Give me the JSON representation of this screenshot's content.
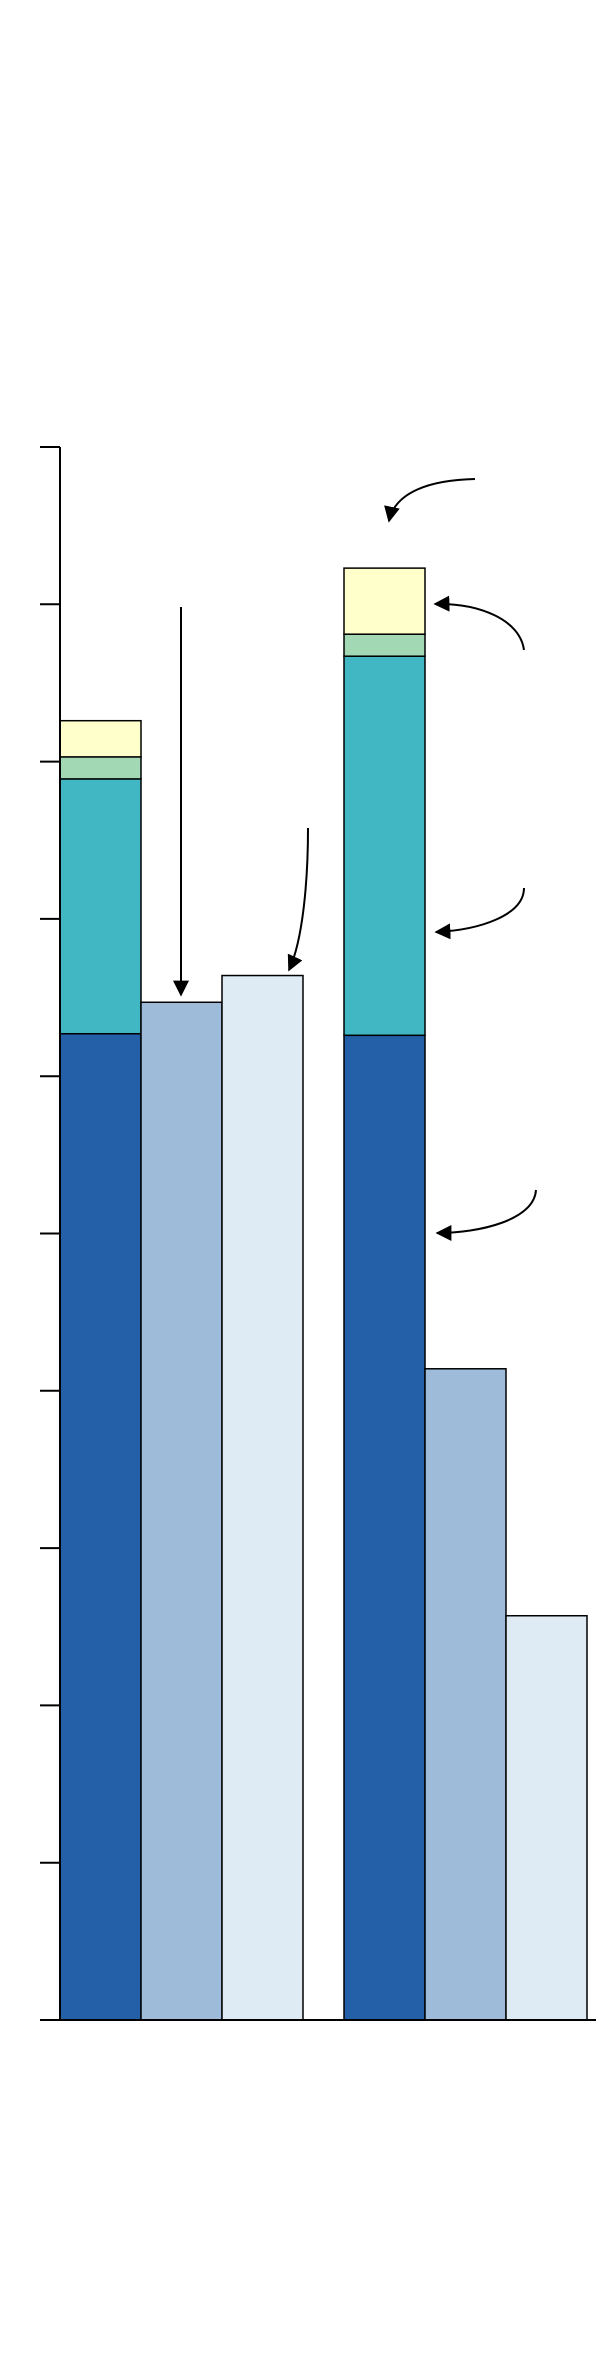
{
  "chart_data": {
    "type": "bar",
    "title": "",
    "xlabel": "",
    "ylabel": "",
    "ylim": [
      0,
      10
    ],
    "yticks": [
      0,
      1,
      2,
      3,
      4,
      5,
      6,
      7,
      8,
      9,
      10
    ],
    "grid": false,
    "legend": "none",
    "tick_labels_visible": false,
    "groups": [
      {
        "bars": [
          {
            "segments": [
              {
                "value": 6.27,
                "color": "#2360a8"
              },
              {
                "value": 1.62,
                "color": "#42b7c4"
              },
              {
                "value": 0.14,
                "color": "#a2d9b4"
              },
              {
                "value": 0.23,
                "color": "#ffffcc"
              }
            ]
          },
          {
            "segments": [
              {
                "value": 6.47,
                "color": "#9ebbda"
              }
            ]
          },
          {
            "segments": [
              {
                "value": 6.64,
                "color": "#dfebf4"
              }
            ]
          }
        ]
      },
      {
        "bars": [
          {
            "segments": [
              {
                "value": 6.26,
                "color": "#2360a8"
              },
              {
                "value": 2.41,
                "color": "#42b7c4"
              },
              {
                "value": 0.14,
                "color": "#a2d9b4"
              },
              {
                "value": 0.42,
                "color": "#ffffcc"
              }
            ]
          },
          {
            "segments": [
              {
                "value": 4.14,
                "color": "#9ebbda"
              }
            ]
          },
          {
            "segments": [
              {
                "value": 2.57,
                "color": "#dfebf4"
              }
            ]
          }
        ]
      }
    ]
  }
}
